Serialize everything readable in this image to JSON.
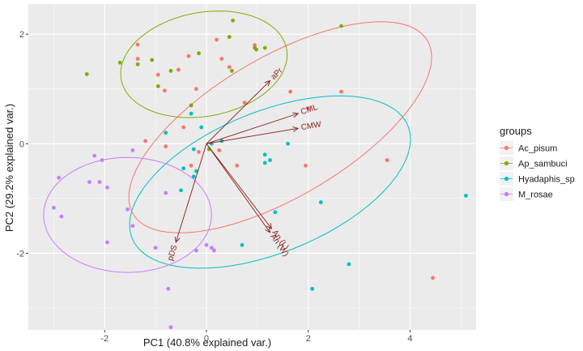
{
  "chart_data": {
    "type": "scatter",
    "subtype": "pca-biplot",
    "xlabel": "PC1 (40.8% explained var.)",
    "ylabel": "PC2 (29.2% explained var.)",
    "xlim": [
      -3.5,
      5.3
    ],
    "ylim": [
      -3.4,
      2.55
    ],
    "xticks": [
      -2,
      0,
      2,
      4
    ],
    "xtick_labels": [
      "-2",
      "0",
      "2",
      "4"
    ],
    "yticks": [
      -2,
      0,
      2
    ],
    "ytick_labels": [
      "-2",
      "0",
      "2"
    ],
    "grid": true,
    "legend": {
      "title": "groups",
      "position": "right"
    },
    "series": [
      {
        "name": "Ac_pisum",
        "color": "#F8766D",
        "points": [
          [
            -1.35,
            1.81
          ],
          [
            -1.35,
            1.55
          ],
          [
            -0.95,
            1.26
          ],
          [
            -0.82,
            0.97
          ],
          [
            -0.55,
            1.35
          ],
          [
            -0.35,
            1.6
          ],
          [
            -0.2,
            1.0
          ],
          [
            0.2,
            1.9
          ],
          [
            0.3,
            1.55
          ],
          [
            0.45,
            1.4
          ],
          [
            0.75,
            0.75
          ],
          [
            0.95,
            1.8
          ],
          [
            1.65,
            0.95
          ],
          [
            2.0,
            0.65
          ],
          [
            2.65,
            0.95
          ],
          [
            3.55,
            -0.3
          ],
          [
            4.45,
            -2.45
          ],
          [
            1.95,
            -0.4
          ],
          [
            0.6,
            -0.4
          ],
          [
            0.25,
            -0.12
          ],
          [
            -0.15,
            -0.15
          ],
          [
            -0.3,
            -0.4
          ],
          [
            -0.45,
            0.3
          ],
          [
            -0.8,
            -0.05
          ],
          [
            -1.2,
            0.05
          ]
        ]
      },
      {
        "name": "Ap_sambuci",
        "color": "#7CAE00",
        "points": [
          [
            -2.35,
            1.27
          ],
          [
            -1.7,
            1.48
          ],
          [
            -1.35,
            1.45
          ],
          [
            -1.07,
            1.53
          ],
          [
            -0.7,
            1.33
          ],
          [
            -0.15,
            1.65
          ],
          [
            -0.3,
            0.7
          ],
          [
            -0.95,
            1.05
          ],
          [
            0.5,
            1.33
          ],
          [
            0.95,
            1.75
          ],
          [
            0.98,
            1.72
          ],
          [
            1.15,
            1.75
          ],
          [
            0.45,
            1.95
          ],
          [
            0.52,
            2.25
          ],
          [
            2.65,
            2.15
          ],
          [
            0.05,
            -0.1
          ]
        ]
      },
      {
        "name": "Hyadaphis_sp",
        "color": "#00BFC4",
        "points": [
          [
            -0.3,
            0.55
          ],
          [
            -0.8,
            0.2
          ],
          [
            -0.1,
            0.3
          ],
          [
            0.1,
            0.0
          ],
          [
            -0.25,
            -0.1
          ],
          [
            -0.45,
            -0.45
          ],
          [
            -0.2,
            -0.5
          ],
          [
            -0.25,
            -0.6
          ],
          [
            -0.5,
            -0.85
          ],
          [
            0.3,
            0.05
          ],
          [
            1.15,
            -0.2
          ],
          [
            1.15,
            -0.35
          ],
          [
            1.25,
            -0.3
          ],
          [
            1.6,
            0.0
          ],
          [
            1.35,
            -1.25
          ],
          [
            2.25,
            -1.07
          ],
          [
            0.7,
            -1.85
          ],
          [
            2.08,
            -2.65
          ],
          [
            2.8,
            -2.2
          ],
          [
            5.1,
            -0.95
          ]
        ]
      },
      {
        "name": "M_rosae",
        "color": "#C77CFF",
        "points": [
          [
            -3.0,
            -1.17
          ],
          [
            -2.85,
            -1.33
          ],
          [
            -2.9,
            -0.62
          ],
          [
            -2.3,
            -0.7
          ],
          [
            -2.2,
            -0.22
          ],
          [
            -2.05,
            -0.3
          ],
          [
            -2.1,
            -0.7
          ],
          [
            -1.95,
            -0.8
          ],
          [
            -1.95,
            -1.8
          ],
          [
            -1.55,
            -1.2
          ],
          [
            -1.45,
            -1.5
          ],
          [
            -1.45,
            -0.12
          ],
          [
            -1.0,
            -1.9
          ],
          [
            -0.8,
            -0.9
          ],
          [
            -0.75,
            -2.65
          ],
          [
            -0.7,
            -3.35
          ],
          [
            -0.2,
            -1.95
          ],
          [
            0.0,
            -1.85
          ],
          [
            0.1,
            -1.9
          ],
          [
            0.15,
            -1.95
          ]
        ]
      }
    ],
    "ellipses": [
      {
        "group": "Ac_pisum",
        "center": [
          1.45,
          0.3
        ],
        "semi_axes": [
          3.3,
          1.3
        ],
        "angle_deg": 28
      },
      {
        "group": "Ap_sambuci",
        "center": [
          -0.05,
          1.45
        ],
        "semi_axes": [
          1.65,
          0.95
        ],
        "angle_deg": 9
      },
      {
        "group": "Hyadaphis_sp",
        "center": [
          1.25,
          -0.7
        ],
        "semi_axes": [
          2.9,
          1.3
        ],
        "angle_deg": 20
      },
      {
        "group": "M_rosae",
        "center": [
          -1.55,
          -1.3
        ],
        "semi_axes": [
          1.65,
          1.05
        ],
        "angle_deg": 0
      }
    ],
    "loadings": [
      {
        "label": "aPr",
        "x": 1.25,
        "y": 1.15
      },
      {
        "label": "CML",
        "x": 1.8,
        "y": 0.55
      },
      {
        "label": "CMW",
        "x": 1.8,
        "y": 0.28
      },
      {
        "label": "An (L)",
        "x": 1.28,
        "y": -1.55
      },
      {
        "label": "An (W)",
        "x": 1.25,
        "y": -1.62
      },
      {
        "label": "pDS",
        "x": -0.6,
        "y": -1.8
      }
    ],
    "loading_color": "#8B1A1A"
  }
}
